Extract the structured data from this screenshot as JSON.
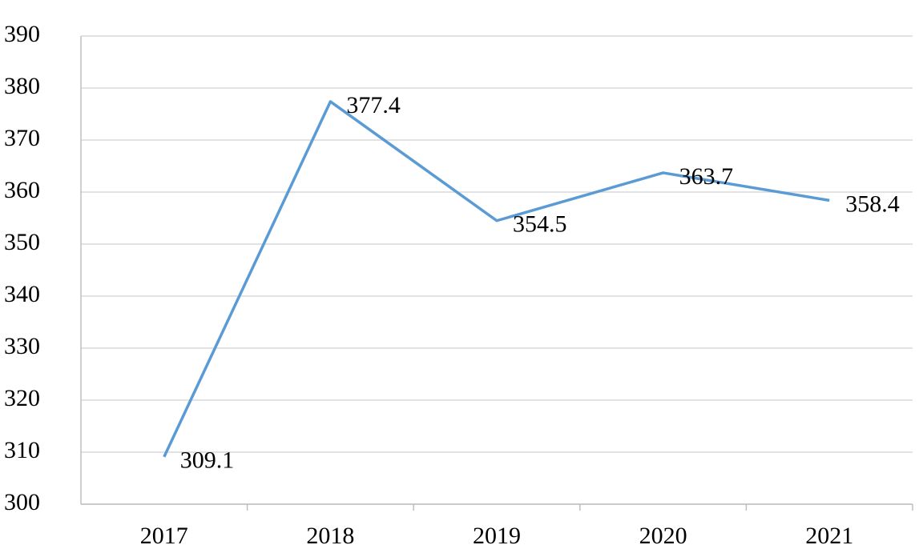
{
  "chart_data": {
    "type": "line",
    "categories": [
      "2017",
      "2018",
      "2019",
      "2020",
      "2021"
    ],
    "series": [
      {
        "color": "#5b9bd5",
        "values": [
          309.1,
          377.4,
          354.5,
          363.7,
          358.4
        ]
      }
    ],
    "ylim": [
      300,
      390
    ],
    "yticks": [
      300,
      310,
      320,
      330,
      340,
      350,
      360,
      370,
      380,
      390
    ],
    "grid": true
  }
}
